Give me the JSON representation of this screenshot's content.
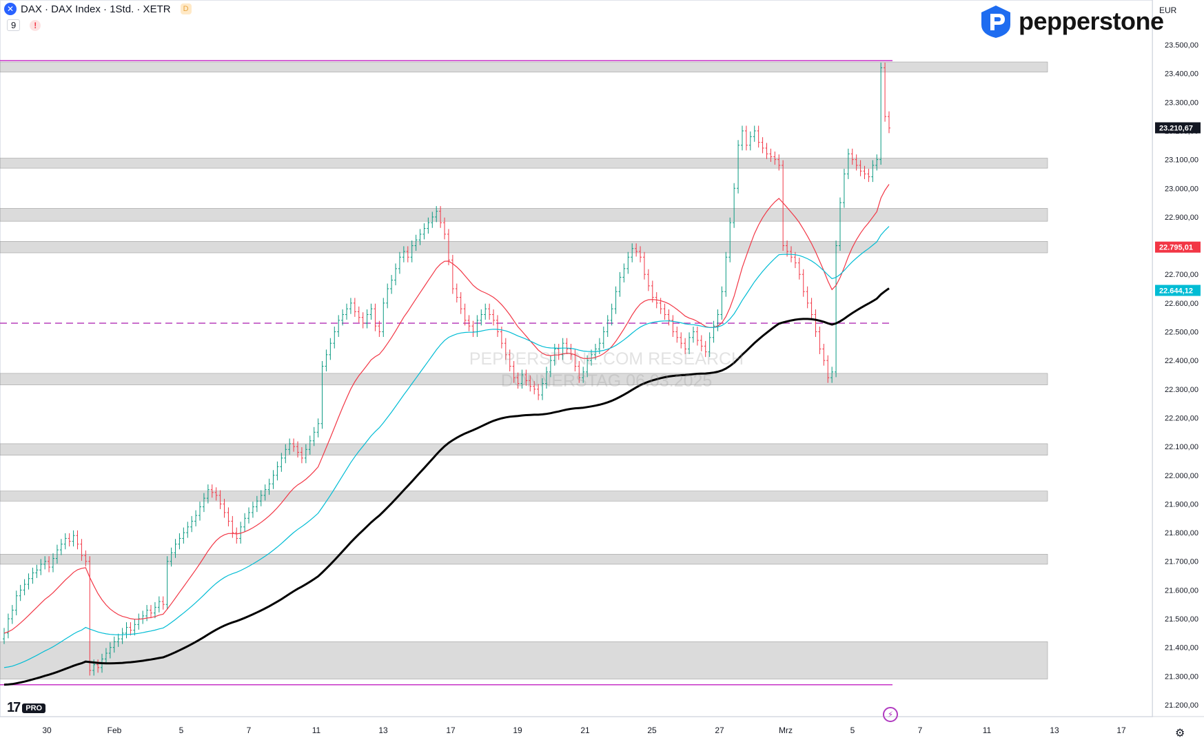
{
  "header": {
    "symbol_line": "DAX · DAX Index · 1Std. · XETR",
    "badge": "D",
    "indicator_count": "9",
    "warning": "!"
  },
  "brand": {
    "name": "pepperstone"
  },
  "currency": "EUR",
  "watermark": {
    "line1": "PEPPERSTONE.COM RESEARCH",
    "line2": "DONNERSTAG 06.03.2025"
  },
  "colors": {
    "up": "#089981",
    "down": "#f23645",
    "ema_red": "#f23645",
    "ema_cyan": "#00bcd4",
    "sma_black": "#000000",
    "zone": "#bdbdbd",
    "purple": "#c21fc2",
    "blue_dots": "#2962ff"
  },
  "chart_data": {
    "type": "line",
    "title": "",
    "xlabel": "",
    "ylabel": "",
    "ylim": [
      21150,
      23560
    ],
    "x_ticks": [
      "30",
      "Feb",
      "5",
      "7",
      "11",
      "13",
      "17",
      "19",
      "21",
      "25",
      "27",
      "Mrz",
      "5",
      "7",
      "11",
      "13",
      "17"
    ],
    "y_ticks": [
      "23.500,00",
      "23.400,00",
      "23.300,00",
      "23.200,00",
      "23.100,00",
      "23.000,00",
      "22.900,00",
      "22.800,00",
      "22.700,00",
      "22.600,00",
      "22.500,00",
      "22.400,00",
      "22.300,00",
      "22.200,00",
      "22.100,00",
      "22.000,00",
      "21.900,00",
      "21.800,00",
      "21.700,00",
      "21.600,00",
      "21.500,00",
      "21.400,00",
      "21.300,00",
      "21.200,00"
    ],
    "price_labels": [
      {
        "label": "23.210,67",
        "value": 23210.67,
        "color": "#131722"
      },
      {
        "label": "22.795,01",
        "value": 22795.01,
        "color": "#f23645"
      },
      {
        "label": "22.644,12",
        "value": 22644.12,
        "color": "#00bcd4"
      }
    ],
    "zones": [
      {
        "from": 23405,
        "to": 23440
      },
      {
        "from": 23070,
        "to": 23105
      },
      {
        "from": 22885,
        "to": 22930
      },
      {
        "from": 22775,
        "to": 22815
      },
      {
        "from": 22315,
        "to": 22355
      },
      {
        "from": 22070,
        "to": 22110
      },
      {
        "from": 21910,
        "to": 21945
      },
      {
        "from": 21690,
        "to": 21725
      },
      {
        "from": 21290,
        "to": 21420
      }
    ],
    "levels": [
      {
        "value": 23445,
        "color": "#c21fc2",
        "style": "solid"
      },
      {
        "value": 22530,
        "color": "#b02fb5",
        "style": "dash"
      },
      {
        "value": 21270,
        "color": "#c21fc2",
        "style": "solid"
      }
    ],
    "closes": [
      21450,
      21500,
      21530,
      21580,
      21600,
      21620,
      21640,
      21660,
      21670,
      21690,
      21700,
      21680,
      21710,
      21740,
      21760,
      21780,
      21770,
      21790,
      21760,
      21720,
      21700,
      21320,
      21340,
      21330,
      21360,
      21380,
      21400,
      21420,
      21430,
      21450,
      21470,
      21460,
      21480,
      21500,
      21510,
      21530,
      21520,
      21540,
      21560,
      21550,
      21700,
      21730,
      21760,
      21780,
      21800,
      21820,
      21840,
      21860,
      21890,
      21920,
      21950,
      21940,
      21930,
      21900,
      21870,
      21840,
      21800,
      21780,
      21820,
      21850,
      21870,
      21890,
      21910,
      21930,
      21950,
      21970,
      22000,
      22030,
      22060,
      22090,
      22110,
      22100,
      22080,
      22060,
      22090,
      22120,
      22150,
      22180,
      22380,
      22420,
      22460,
      22500,
      22540,
      22560,
      22580,
      22600,
      22570,
      22550,
      22530,
      22560,
      22580,
      22520,
      22500,
      22600,
      22650,
      22680,
      22720,
      22760,
      22780,
      22760,
      22800,
      22820,
      22840,
      22860,
      22880,
      22900,
      22920,
      22880,
      22840,
      22750,
      22650,
      22620,
      22580,
      22540,
      22520,
      22500,
      22540,
      22560,
      22580,
      22560,
      22540,
      22500,
      22460,
      22420,
      22380,
      22340,
      22320,
      22350,
      22330,
      22310,
      22300,
      22280,
      22320,
      22360,
      22400,
      22440,
      22420,
      22460,
      22440,
      22420,
      22380,
      22340,
      22360,
      22400,
      22420,
      22440,
      22460,
      22500,
      22540,
      22580,
      22640,
      22690,
      22720,
      22760,
      22790,
      22780,
      22760,
      22700,
      22660,
      22620,
      22600,
      22580,
      22560,
      22540,
      22500,
      22480,
      22460,
      22440,
      22480,
      22500,
      22470,
      22450,
      22430,
      22480,
      22520,
      22560,
      22640,
      22760,
      22880,
      23000,
      23150,
      23200,
      23150,
      23180,
      23200,
      23160,
      23140,
      23120,
      23110,
      23100,
      23080,
      22800,
      22780,
      22760,
      22740,
      22700,
      22640,
      22600,
      22560,
      22500,
      22440,
      22400,
      22340,
      22360,
      22800,
      22950,
      23050,
      23120,
      23100,
      23080,
      23060,
      23050,
      23040,
      23080,
      23100,
      23420,
      23250,
      23210
    ]
  }
}
